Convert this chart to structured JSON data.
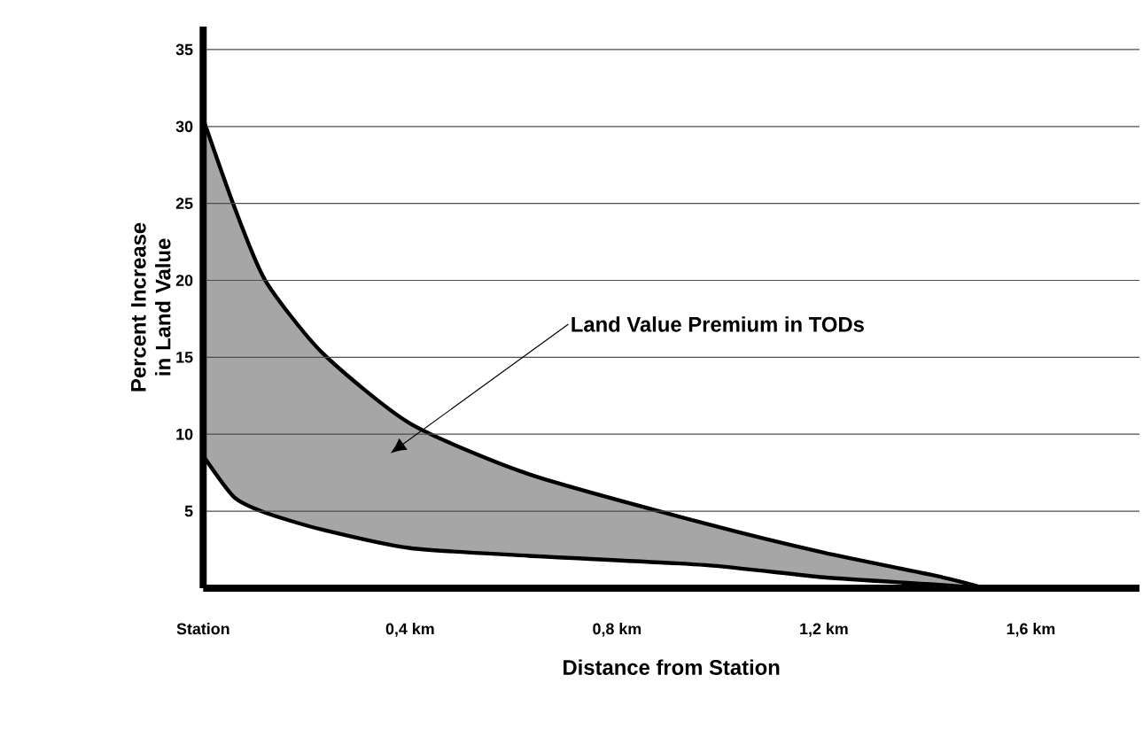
{
  "chart_data": {
    "type": "area",
    "xlabel": "Distance from Station",
    "ylabel": "Percent Increase in Land Value",
    "x": [
      0,
      0.06,
      0.12,
      0.23,
      0.4,
      0.63,
      0.97,
      1.2,
      1.43,
      1.51
    ],
    "series": [
      {
        "color": "#a6a6a6",
        "values": [
          30.5,
          24.8,
          20,
          15.3,
          10.7,
          7.4,
          4.2,
          2.3,
          0.7,
          0
        ]
      },
      {
        "color": "#ffffff",
        "values": [
          8.6,
          5.9,
          4.9,
          3.8,
          2.6,
          2.1,
          1.5,
          0.7,
          0.2,
          0
        ]
      }
    ],
    "xlim": [
      0,
      1.81
    ],
    "ylim": [
      0,
      36.5
    ],
    "xticks": [
      {
        "value": 0,
        "label": "Station"
      },
      {
        "value": 0.4,
        "label": "0,4 km"
      },
      {
        "value": 0.8,
        "label": "0,8 km"
      },
      {
        "value": 1.2,
        "label": "1,2 km"
      },
      {
        "value": 1.6,
        "label": "1,6 km"
      }
    ],
    "yticks": [
      5,
      10,
      15,
      20,
      25,
      30,
      35
    ],
    "grid": "y",
    "annotations": [
      "Land Value Premium in TODs"
    ]
  }
}
